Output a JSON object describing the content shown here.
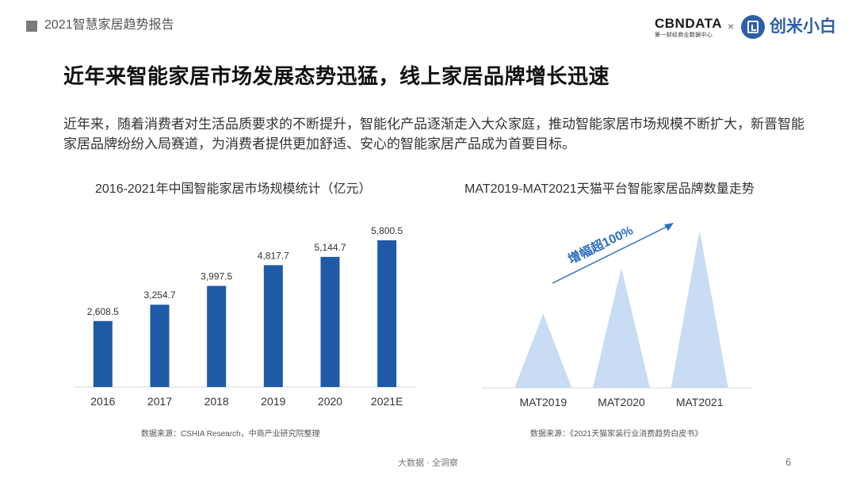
{
  "header": {
    "report_title": "2021智慧家居趋势报告",
    "logo_cbn": "CBNDATA",
    "logo_cbn_sub": "第一财经商业数据中心",
    "logo_separator": "×",
    "logo_brand": "创米小白"
  },
  "main": {
    "title": "近年来智能家居市场发展态势迅猛，线上家居品牌增长迅速",
    "intro": "近年来，随着消费者对生活品质要求的不断提升，智能化产品逐渐走入大众家庭，推动智能家居市场规模不断扩大，新晋智能家居品牌纷纷入局赛道，为消费者提供更加舒适、安心的智能家居产品成为首要目标。"
  },
  "chart_data": [
    {
      "type": "bar",
      "title": "2016-2021年中国智能家居市场规模统计（亿元）",
      "categories": [
        "2016",
        "2017",
        "2018",
        "2019",
        "2020",
        "2021E"
      ],
      "values": [
        2608.5,
        3254.7,
        3997.5,
        4817.7,
        5144.7,
        5800.5
      ],
      "value_labels": [
        "2,608.5",
        "3,254.7",
        "3,997.5",
        "4,817.7",
        "5,144.7",
        "5,800.5"
      ],
      "xlabel": "",
      "ylabel": "",
      "grid": false,
      "bar_color": "#1f5aa6",
      "source": "数据来源：CSHIA Research，中商产业研究院整理"
    },
    {
      "type": "area",
      "title": "MAT2019-MAT2021天猫平台智能家居品牌数量走势",
      "categories": [
        "MAT2019",
        "MAT2020",
        "MAT2021"
      ],
      "values": [
        0.47,
        0.76,
        1.0
      ],
      "annotation": "增幅超100%",
      "grid": false,
      "fill_color": "#c8dcf3",
      "annotation_color": "#2d6fc0",
      "source": "数据来源：《2021天猫家装行业消费趋势白皮书》"
    }
  ],
  "footer": {
    "tagline": "大数据 · 全洞察",
    "page_number": "6"
  }
}
